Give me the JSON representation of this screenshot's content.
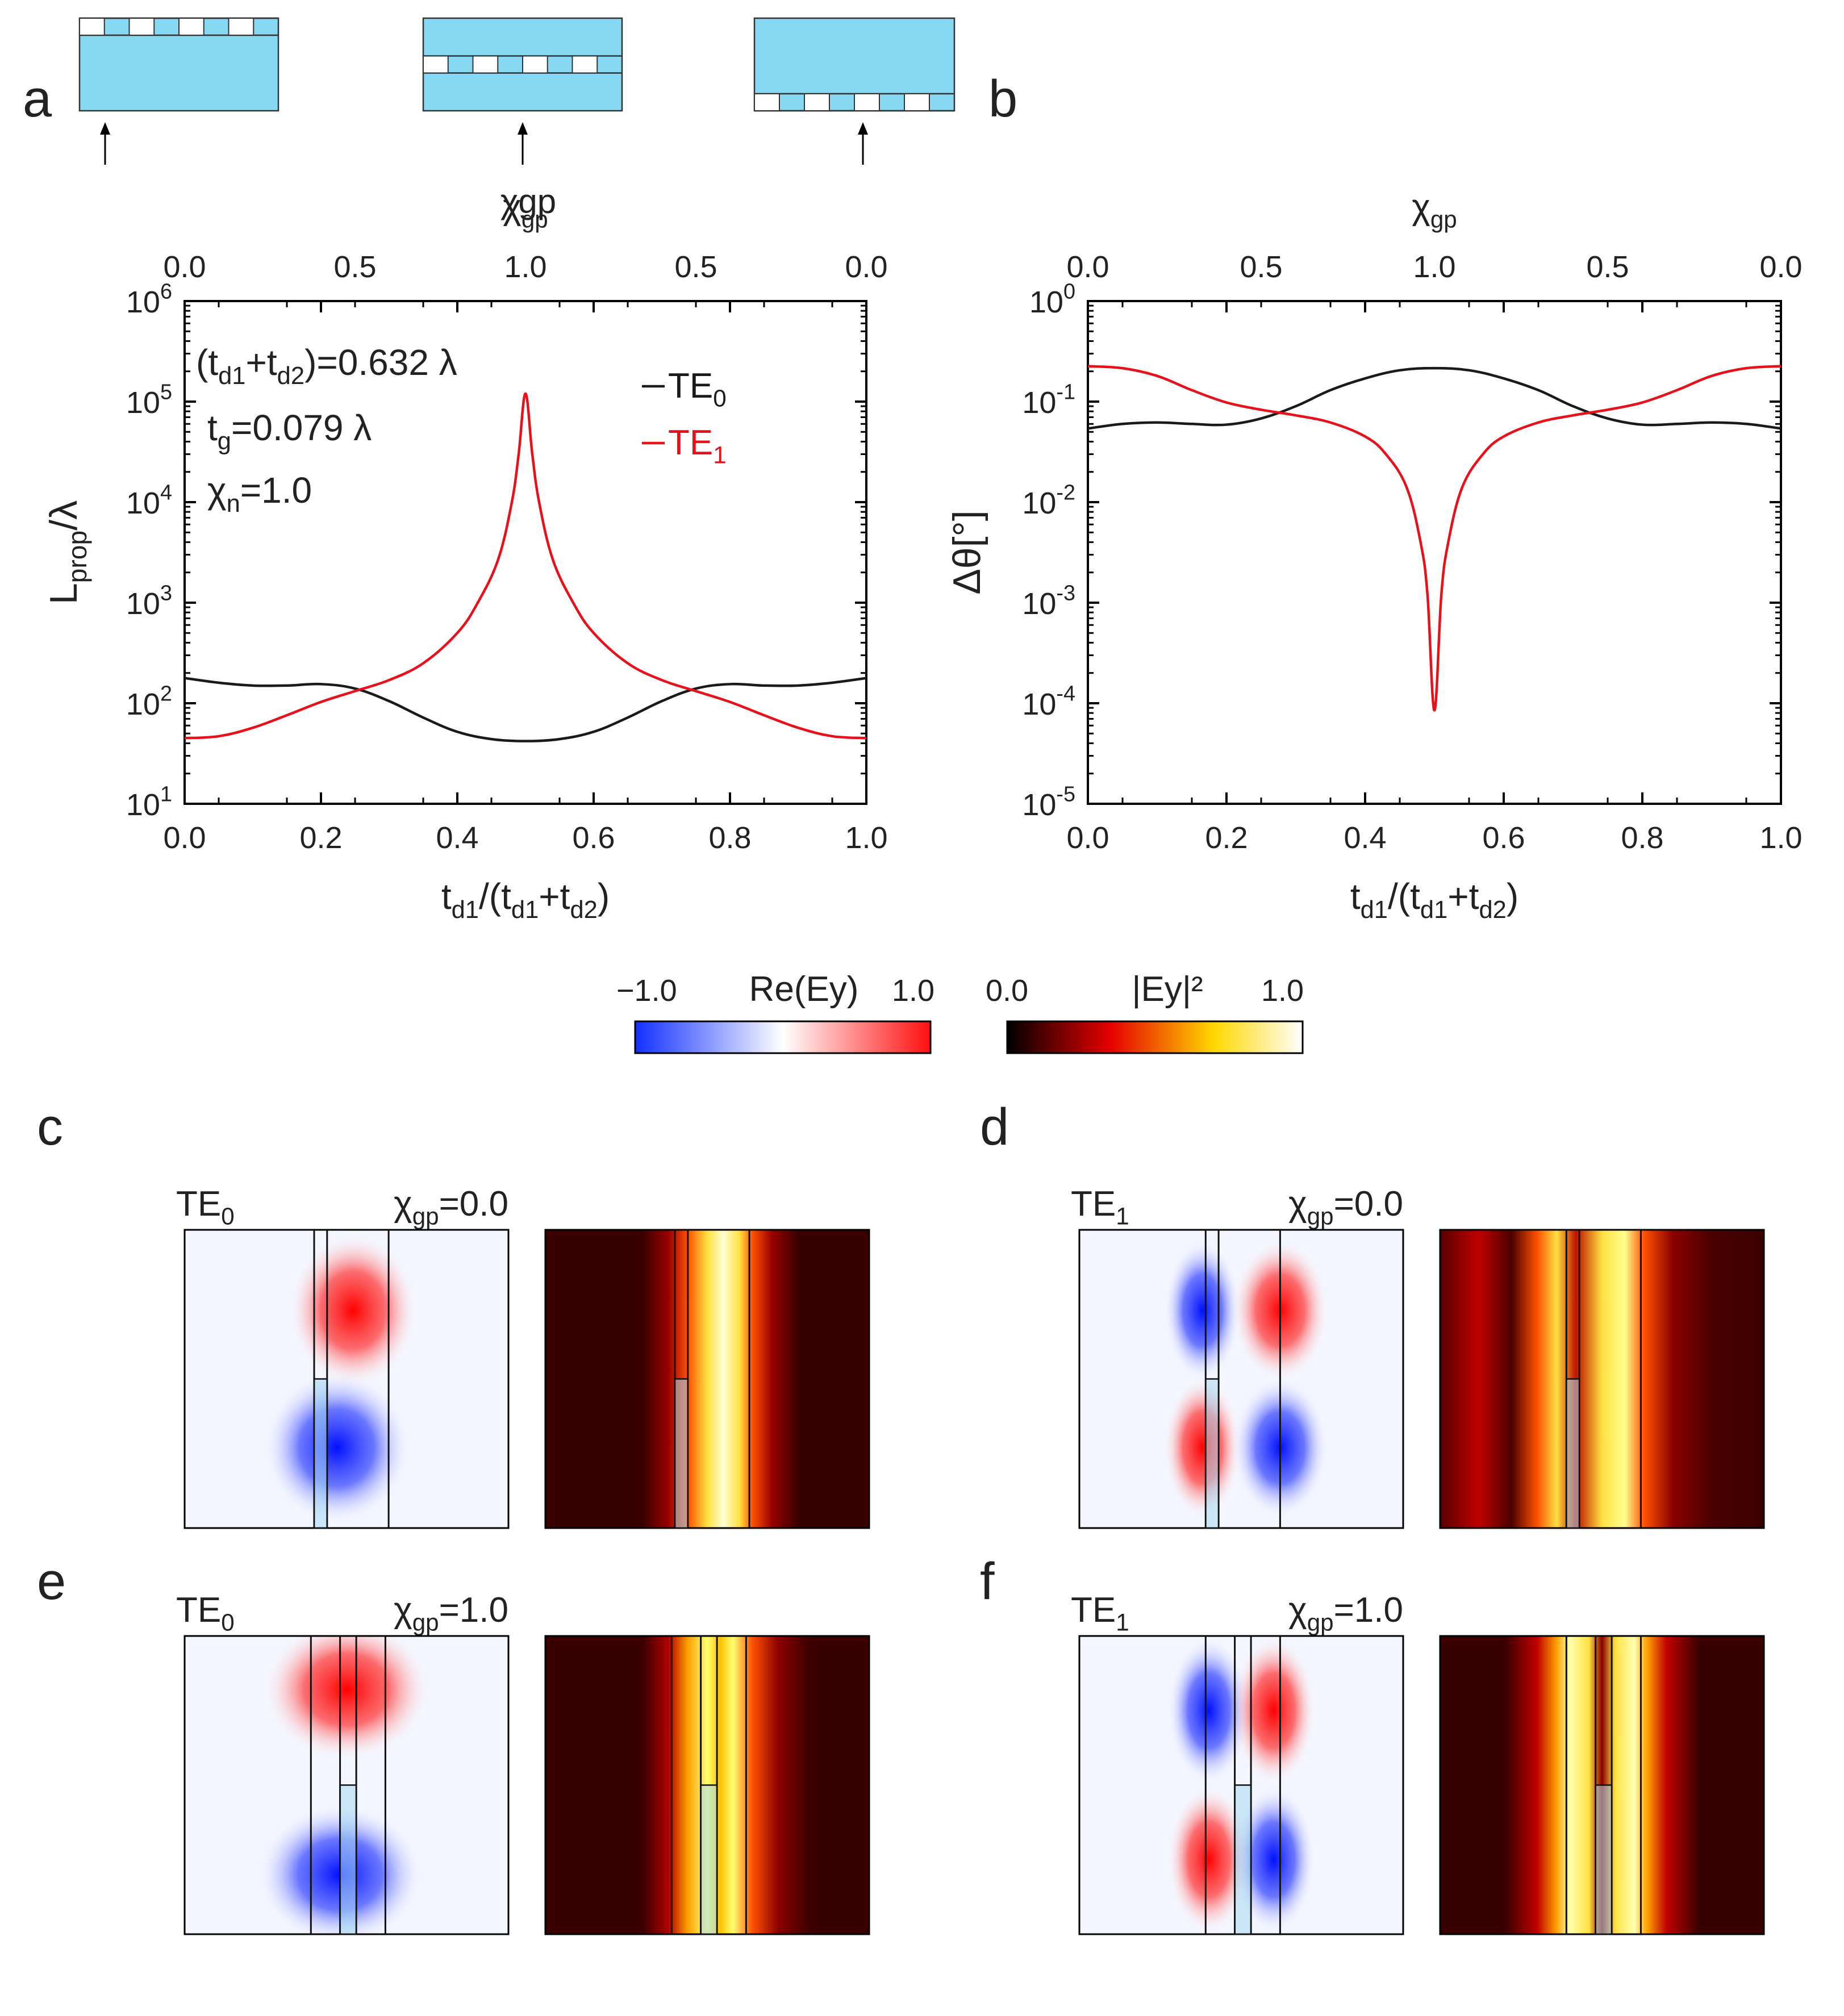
{
  "panel_letters": {
    "a": "a",
    "b": "b",
    "c": "c",
    "d": "d",
    "e": "e",
    "f": "f"
  },
  "colors": {
    "red": "#e8101a",
    "black": "#1a1a1a",
    "schematic": "#87d8f2",
    "grid_bg": "#ffffff"
  },
  "schematic_label": "χgp",
  "chart_data": [
    {
      "id": "a",
      "type": "line",
      "xlabel": "td1/(td1+td2)",
      "ylabel": "Lprop/λ",
      "top_axis_label": "χgp",
      "xlim": [
        0,
        1
      ],
      "ylim_log10": [
        1,
        6
      ],
      "xticks": [
        "0.0",
        "0.2",
        "0.4",
        "0.6",
        "0.8",
        "1.0"
      ],
      "top_ticks": [
        "0.0",
        "0.5",
        "1.0",
        "0.5",
        "0.0"
      ],
      "yticks": [
        "10^1",
        "10^2",
        "10^3",
        "10^4",
        "10^5",
        "10^6"
      ],
      "annotations": [
        "(td1+td2)=0.632 λ",
        "tg=0.079 λ",
        "χn=1.0"
      ],
      "legend": [
        "TE0",
        "TE1"
      ],
      "series": [
        {
          "name": "TE0",
          "color": "#1a1a1a",
          "x": [
            0.0,
            0.05,
            0.1,
            0.15,
            0.2,
            0.25,
            0.3,
            0.35,
            0.4,
            0.45,
            0.5,
            0.55,
            0.6,
            0.65,
            0.7,
            0.75,
            0.8,
            0.85,
            0.9,
            0.95,
            1.0
          ],
          "y": [
            178,
            160,
            150,
            150,
            155,
            140,
            105,
            72,
            52,
            44,
            42,
            44,
            52,
            72,
            105,
            140,
            155,
            150,
            150,
            160,
            178
          ]
        },
        {
          "name": "TE1",
          "color": "#e8101a",
          "x": [
            0.0,
            0.05,
            0.1,
            0.15,
            0.2,
            0.25,
            0.3,
            0.35,
            0.4,
            0.43,
            0.46,
            0.48,
            0.49,
            0.5,
            0.51,
            0.52,
            0.54,
            0.57,
            0.6,
            0.65,
            0.7,
            0.75,
            0.8,
            0.85,
            0.9,
            0.95,
            1.0
          ],
          "y": [
            45,
            47,
            57,
            76,
            103,
            132,
            170,
            250,
            500,
            1000,
            2700,
            10000,
            30000,
            120000,
            30000,
            10000,
            2700,
            1000,
            500,
            250,
            170,
            132,
            103,
            76,
            57,
            47,
            45
          ]
        }
      ]
    },
    {
      "id": "b",
      "type": "line",
      "xlabel": "td1/(td1+td2)",
      "ylabel": "Δθ[°]",
      "top_axis_label": "χgp",
      "xlim": [
        0,
        1
      ],
      "ylim_log10": [
        -5,
        0
      ],
      "xticks": [
        "0.0",
        "0.2",
        "0.4",
        "0.6",
        "0.8",
        "1.0"
      ],
      "top_ticks": [
        "0.0",
        "0.5",
        "1.0",
        "0.5",
        "0.0"
      ],
      "yticks": [
        "10^-5",
        "10^-4",
        "10^-3",
        "10^-2",
        "10^-1",
        "10^0"
      ],
      "series": [
        {
          "name": "TE0",
          "color": "#1a1a1a",
          "x": [
            0.0,
            0.05,
            0.1,
            0.15,
            0.2,
            0.25,
            0.3,
            0.35,
            0.4,
            0.45,
            0.5,
            0.55,
            0.6,
            0.65,
            0.7,
            0.75,
            0.8,
            0.85,
            0.9,
            0.95,
            1.0
          ],
          "y": [
            0.054,
            0.06,
            0.062,
            0.06,
            0.059,
            0.068,
            0.09,
            0.13,
            0.17,
            0.205,
            0.215,
            0.205,
            0.17,
            0.13,
            0.09,
            0.068,
            0.059,
            0.06,
            0.062,
            0.06,
            0.054
          ]
        },
        {
          "name": "TE1",
          "color": "#e8101a",
          "x": [
            0.0,
            0.05,
            0.1,
            0.15,
            0.2,
            0.25,
            0.3,
            0.35,
            0.4,
            0.43,
            0.46,
            0.48,
            0.49,
            0.5,
            0.51,
            0.52,
            0.54,
            0.57,
            0.6,
            0.65,
            0.7,
            0.75,
            0.8,
            0.85,
            0.9,
            0.95,
            1.0
          ],
          "y": [
            0.225,
            0.215,
            0.18,
            0.13,
            0.098,
            0.083,
            0.073,
            0.062,
            0.045,
            0.03,
            0.014,
            0.004,
            0.0012,
            8.5e-05,
            0.0012,
            0.004,
            0.014,
            0.03,
            0.045,
            0.062,
            0.073,
            0.083,
            0.098,
            0.13,
            0.18,
            0.215,
            0.225
          ]
        }
      ]
    }
  ],
  "colorbars": {
    "re": {
      "title": "Re(Ey)",
      "min": "−1.0",
      "max": "1.0"
    },
    "abs": {
      "title": "|Ey|²",
      "min": "0.0",
      "max": "1.0"
    }
  },
  "field_maps": [
    {
      "id": "c",
      "mode": "TE0",
      "chi": "χgp=0.0"
    },
    {
      "id": "d",
      "mode": "TE1",
      "chi": "χgp=0.0"
    },
    {
      "id": "e",
      "mode": "TE0",
      "chi": "χgp=1.0"
    },
    {
      "id": "f",
      "mode": "TE1",
      "chi": "χgp=1.0"
    }
  ]
}
